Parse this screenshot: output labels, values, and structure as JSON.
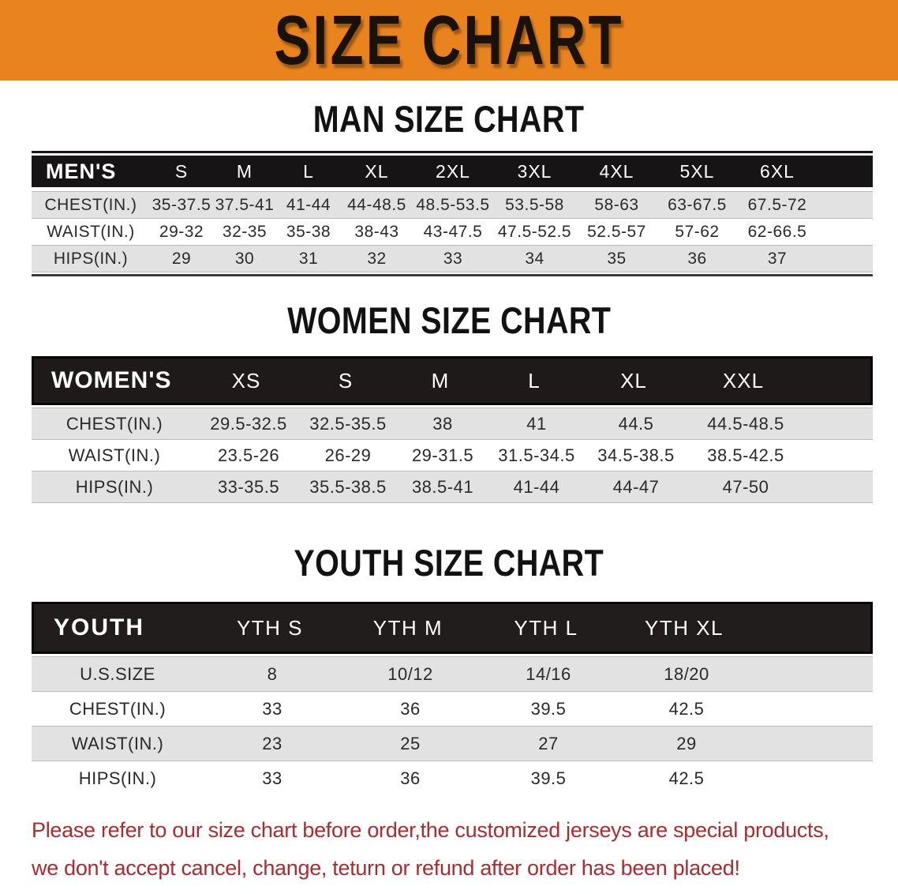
{
  "colors": {
    "banner_bg": "#e8831e",
    "banner_text": "#18120b",
    "men_header_bg": "#161414",
    "women_header_bg": "#1e1a1a",
    "youth_header_bg": "#211d1d",
    "header_text": "#ffffff",
    "row_stripe": "#e2e2e2",
    "body_text": "#2a2a2a",
    "disclaimer_text": "#b3282c"
  },
  "banner": {
    "title": "SIZE CHART"
  },
  "men": {
    "heading": "MAN SIZE CHART",
    "table": {
      "label": "MEN'S",
      "columns": [
        "S",
        "M",
        "L",
        "XL",
        "2XL",
        "3XL",
        "4XL",
        "5XL",
        "6XL"
      ],
      "rows": [
        {
          "label": "CHEST(IN.)",
          "values": [
            "35-37.5",
            "37.5-41",
            "41-44",
            "44-48.5",
            "48.5-53.5",
            "53.5-58",
            "58-63",
            "63-67.5",
            "67.5-72"
          ]
        },
        {
          "label": "WAIST(IN.)",
          "values": [
            "29-32",
            "32-35",
            "35-38",
            "38-43",
            "43-47.5",
            "47.5-52.5",
            "52.5-57",
            "57-62",
            "62-66.5"
          ]
        },
        {
          "label": "HIPS(IN.)",
          "values": [
            "29",
            "30",
            "31",
            "32",
            "33",
            "34",
            "35",
            "36",
            "37"
          ]
        }
      ]
    }
  },
  "women": {
    "heading": "WOMEN SIZE CHART",
    "table": {
      "label": "WOMEN'S",
      "columns": [
        "XS",
        "S",
        "M",
        "L",
        "XL",
        "XXL"
      ],
      "rows": [
        {
          "label": "CHEST(IN.)",
          "values": [
            "29.5-32.5",
            "32.5-35.5",
            "38",
            "41",
            "44.5",
            "44.5-48.5"
          ]
        },
        {
          "label": "WAIST(IN.)",
          "values": [
            "23.5-26",
            "26-29",
            "29-31.5",
            "31.5-34.5",
            "34.5-38.5",
            "38.5-42.5"
          ]
        },
        {
          "label": "HIPS(IN.)",
          "values": [
            "33-35.5",
            "35.5-38.5",
            "38.5-41",
            "41-44",
            "44-47",
            "47-50"
          ]
        }
      ]
    }
  },
  "youth": {
    "heading": "YOUTH SIZE CHART",
    "table": {
      "label": "YOUTH",
      "columns": [
        "YTH S",
        "YTH M",
        "YTH L",
        "YTH XL"
      ],
      "rows": [
        {
          "label": "U.S.SIZE",
          "values": [
            "8",
            "10/12",
            "14/16",
            "18/20"
          ]
        },
        {
          "label": "CHEST(IN.)",
          "values": [
            "33",
            "36",
            "39.5",
            "42.5"
          ]
        },
        {
          "label": "WAIST(IN.)",
          "values": [
            "23",
            "25",
            "27",
            "29"
          ]
        },
        {
          "label": "HIPS(IN.)",
          "values": [
            "33",
            "36",
            "39.5",
            "42.5"
          ]
        }
      ]
    }
  },
  "disclaimer": {
    "line1": "Please refer to our size chart before order,the customized jerseys are special products,",
    "line2": "we don't accept cancel, change, teturn or refund after order has been placed!"
  }
}
